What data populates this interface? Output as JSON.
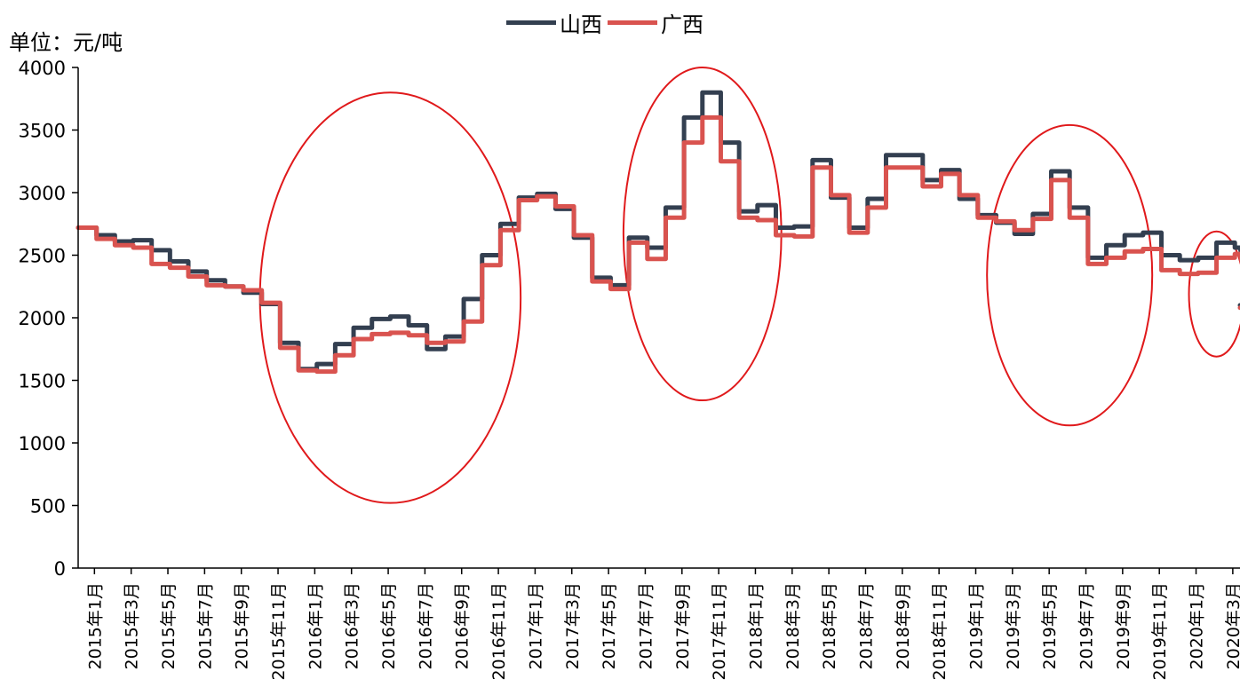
{
  "unit_label": "单位：元/吨",
  "colors": {
    "shanxi": "#333F50",
    "guangxi": "#D9534F",
    "ellipse": "#E0191B",
    "axis": "#000000"
  },
  "chart_data": {
    "type": "line",
    "ylim": [
      0,
      4000
    ],
    "yticks": [
      0,
      500,
      1000,
      1500,
      2000,
      2500,
      3000,
      3500,
      4000
    ],
    "grid": false,
    "legend": "top-center",
    "x_start_month": "2015-01",
    "x_end_month": "2020-05",
    "xtick_labels": [
      "2015年1月",
      "2015年3月",
      "2015年5月",
      "2015年7月",
      "2015年9月",
      "2015年11月",
      "2016年1月",
      "2016年3月",
      "2016年5月",
      "2016年7月",
      "2016年9月",
      "2016年11月",
      "2017年1月",
      "2017年3月",
      "2017年5月",
      "2017年7月",
      "2017年9月",
      "2017年11月",
      "2018年1月",
      "2018年3月",
      "2018年5月",
      "2018年7月",
      "2018年9月",
      "2018年11月",
      "2019年1月",
      "2019年3月",
      "2019年5月",
      "2019年7月",
      "2019年9月",
      "2019年11月",
      "2020年1月",
      "2020年3月"
    ],
    "series": [
      {
        "name": "山西",
        "color": "#333F50",
        "points": [
          [
            "2015-01",
            2720
          ],
          [
            "2015-02",
            2660
          ],
          [
            "2015-03",
            2610
          ],
          [
            "2015-04",
            2620
          ],
          [
            "2015-05",
            2540
          ],
          [
            "2015-06",
            2450
          ],
          [
            "2015-07",
            2370
          ],
          [
            "2015-08",
            2300
          ],
          [
            "2015-09",
            2250
          ],
          [
            "2015-10",
            2200
          ],
          [
            "2015-11",
            2110
          ],
          [
            "2015-12",
            1800
          ],
          [
            "2016-01",
            1590
          ],
          [
            "2016-02",
            1630
          ],
          [
            "2016-03",
            1790
          ],
          [
            "2016-04",
            1920
          ],
          [
            "2016-05",
            1990
          ],
          [
            "2016-06",
            2010
          ],
          [
            "2016-07",
            1940
          ],
          [
            "2016-08",
            1750
          ],
          [
            "2016-09",
            1850
          ],
          [
            "2016-10",
            2150
          ],
          [
            "2016-11",
            2500
          ],
          [
            "2016-12",
            2750
          ],
          [
            "2017-01",
            2960
          ],
          [
            "2017-02",
            2990
          ],
          [
            "2017-03",
            2870
          ],
          [
            "2017-04",
            2640
          ],
          [
            "2017-05",
            2320
          ],
          [
            "2017-06",
            2260
          ],
          [
            "2017-07",
            2640
          ],
          [
            "2017-08",
            2560
          ],
          [
            "2017-09",
            2880
          ],
          [
            "2017-10",
            3600
          ],
          [
            "2017-11",
            3800
          ],
          [
            "2017-12",
            3400
          ],
          [
            "2018-01",
            2850
          ],
          [
            "2018-02",
            2900
          ],
          [
            "2018-03",
            2720
          ],
          [
            "2018-04",
            2730
          ],
          [
            "2018-05",
            3260
          ],
          [
            "2018-06",
            2960
          ],
          [
            "2018-07",
            2720
          ],
          [
            "2018-08",
            2950
          ],
          [
            "2018-09",
            3300
          ],
          [
            "2018-10",
            3300
          ],
          [
            "2018-11",
            3100
          ],
          [
            "2018-12",
            3180
          ],
          [
            "2019-01",
            2950
          ],
          [
            "2019-02",
            2820
          ],
          [
            "2019-03",
            2760
          ],
          [
            "2019-04",
            2670
          ],
          [
            "2019-05",
            2830
          ],
          [
            "2019-06",
            3170
          ],
          [
            "2019-07",
            2880
          ],
          [
            "2019-08",
            2480
          ],
          [
            "2019-09",
            2580
          ],
          [
            "2019-10",
            2660
          ],
          [
            "2019-11",
            2680
          ],
          [
            "2019-12",
            2500
          ],
          [
            "2020-01",
            2460
          ],
          [
            "2020-02",
            2480
          ],
          [
            "2020-03",
            2600
          ],
          [
            "2020-04",
            2560
          ],
          [
            "2020-05",
            2100
          ]
        ]
      },
      {
        "name": "广西",
        "color": "#D9534F",
        "points": [
          [
            "2015-01",
            2720
          ],
          [
            "2015-02",
            2630
          ],
          [
            "2015-03",
            2580
          ],
          [
            "2015-04",
            2560
          ],
          [
            "2015-05",
            2430
          ],
          [
            "2015-06",
            2400
          ],
          [
            "2015-07",
            2330
          ],
          [
            "2015-08",
            2260
          ],
          [
            "2015-09",
            2250
          ],
          [
            "2015-10",
            2220
          ],
          [
            "2015-11",
            2120
          ],
          [
            "2015-12",
            1760
          ],
          [
            "2016-01",
            1580
          ],
          [
            "2016-02",
            1570
          ],
          [
            "2016-03",
            1700
          ],
          [
            "2016-04",
            1830
          ],
          [
            "2016-05",
            1870
          ],
          [
            "2016-06",
            1880
          ],
          [
            "2016-07",
            1860
          ],
          [
            "2016-08",
            1800
          ],
          [
            "2016-09",
            1810
          ],
          [
            "2016-10",
            1970
          ],
          [
            "2016-11",
            2420
          ],
          [
            "2016-12",
            2700
          ],
          [
            "2017-01",
            2940
          ],
          [
            "2017-02",
            2970
          ],
          [
            "2017-03",
            2890
          ],
          [
            "2017-04",
            2660
          ],
          [
            "2017-05",
            2290
          ],
          [
            "2017-06",
            2230
          ],
          [
            "2017-07",
            2600
          ],
          [
            "2017-08",
            2470
          ],
          [
            "2017-09",
            2800
          ],
          [
            "2017-10",
            3400
          ],
          [
            "2017-11",
            3600
          ],
          [
            "2017-12",
            3250
          ],
          [
            "2018-01",
            2800
          ],
          [
            "2018-02",
            2780
          ],
          [
            "2018-03",
            2660
          ],
          [
            "2018-04",
            2650
          ],
          [
            "2018-05",
            3200
          ],
          [
            "2018-06",
            2980
          ],
          [
            "2018-07",
            2680
          ],
          [
            "2018-08",
            2880
          ],
          [
            "2018-09",
            3200
          ],
          [
            "2018-10",
            3200
          ],
          [
            "2018-11",
            3050
          ],
          [
            "2018-12",
            3150
          ],
          [
            "2019-01",
            2980
          ],
          [
            "2019-02",
            2800
          ],
          [
            "2019-03",
            2770
          ],
          [
            "2019-04",
            2700
          ],
          [
            "2019-05",
            2790
          ],
          [
            "2019-06",
            3100
          ],
          [
            "2019-07",
            2800
          ],
          [
            "2019-08",
            2430
          ],
          [
            "2019-09",
            2480
          ],
          [
            "2019-10",
            2530
          ],
          [
            "2019-11",
            2550
          ],
          [
            "2019-12",
            2380
          ],
          [
            "2020-01",
            2350
          ],
          [
            "2020-02",
            2360
          ],
          [
            "2020-03",
            2480
          ],
          [
            "2020-04",
            2510
          ],
          [
            "2020-05",
            2080
          ]
        ]
      }
    ],
    "annotations": [
      {
        "type": "ellipse",
        "cx": "2016-06",
        "cy": 2160,
        "rx_months": 7.1,
        "ry": 1640
      },
      {
        "type": "ellipse",
        "cx": "2017-11",
        "cy": 2670,
        "rx_months": 4.3,
        "ry": 1330
      },
      {
        "type": "ellipse",
        "cx": "2019-07",
        "cy": 2340,
        "rx_months": 4.5,
        "ry": 1200
      },
      {
        "type": "ellipse",
        "cx": "2020-03",
        "cy": 2190,
        "rx_months": 1.5,
        "ry": 500
      }
    ]
  }
}
